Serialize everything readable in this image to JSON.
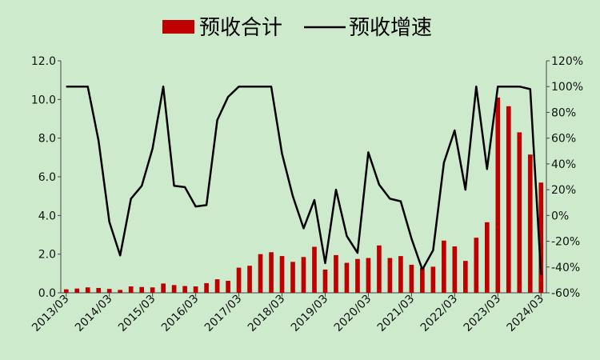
{
  "chart_data": {
    "type": "bar+line",
    "title": "",
    "legend": {
      "position": "top-center",
      "items": [
        {
          "label": "预收合计",
          "kind": "bar",
          "color": "#c00000"
        },
        {
          "label": "预收增速",
          "kind": "line",
          "color": "#000000"
        }
      ]
    },
    "x_tick_labels": [
      "2013/03",
      "2014/03",
      "2015/03",
      "2016/03",
      "2017/03",
      "2018/03",
      "2019/03",
      "2020/03",
      "2021/03",
      "2022/03",
      "2023/03",
      "2024/03"
    ],
    "y_left": {
      "min": 0,
      "max": 12,
      "step": 2,
      "tick_labels": [
        "0.0",
        "2.0",
        "4.0",
        "6.0",
        "8.0",
        "10.0",
        "12.0"
      ]
    },
    "y_right": {
      "min": -60,
      "max": 120,
      "step": 20,
      "tick_labels": [
        "-60%",
        "-40%",
        "-20%",
        "0%",
        "20%",
        "40%",
        "60%",
        "80%",
        "100%",
        "120%"
      ]
    },
    "grid": false,
    "colors": {
      "bar": "#c00000",
      "line": "#000000",
      "background": "#cdeacd"
    },
    "bar_series": {
      "name": "预收合计",
      "values": [
        0.18,
        0.22,
        0.28,
        0.25,
        0.2,
        0.15,
        0.33,
        0.3,
        0.28,
        0.48,
        0.4,
        0.35,
        0.33,
        0.5,
        0.7,
        0.62,
        1.3,
        1.4,
        2.0,
        2.1,
        1.9,
        1.6,
        1.85,
        2.38,
        1.2,
        1.95,
        1.55,
        1.75,
        1.8,
        2.45,
        1.8,
        1.9,
        1.45,
        1.3,
        1.35,
        2.7,
        2.4,
        1.65,
        2.85,
        3.65,
        10.1,
        9.65,
        8.3,
        7.15,
        5.7
      ]
    },
    "line_series": {
      "name": "预收增速",
      "values": [
        100,
        100,
        100,
        58,
        -5,
        -31,
        13,
        23,
        52,
        100,
        23,
        22,
        7,
        8,
        74,
        92,
        100,
        100,
        100,
        100,
        48,
        15,
        -10,
        12,
        -37,
        20,
        -16,
        -29,
        49,
        24,
        13,
        11,
        -18,
        -42,
        -27,
        41,
        66,
        20,
        100,
        36,
        100,
        100,
        100,
        98,
        -46
      ]
    }
  }
}
